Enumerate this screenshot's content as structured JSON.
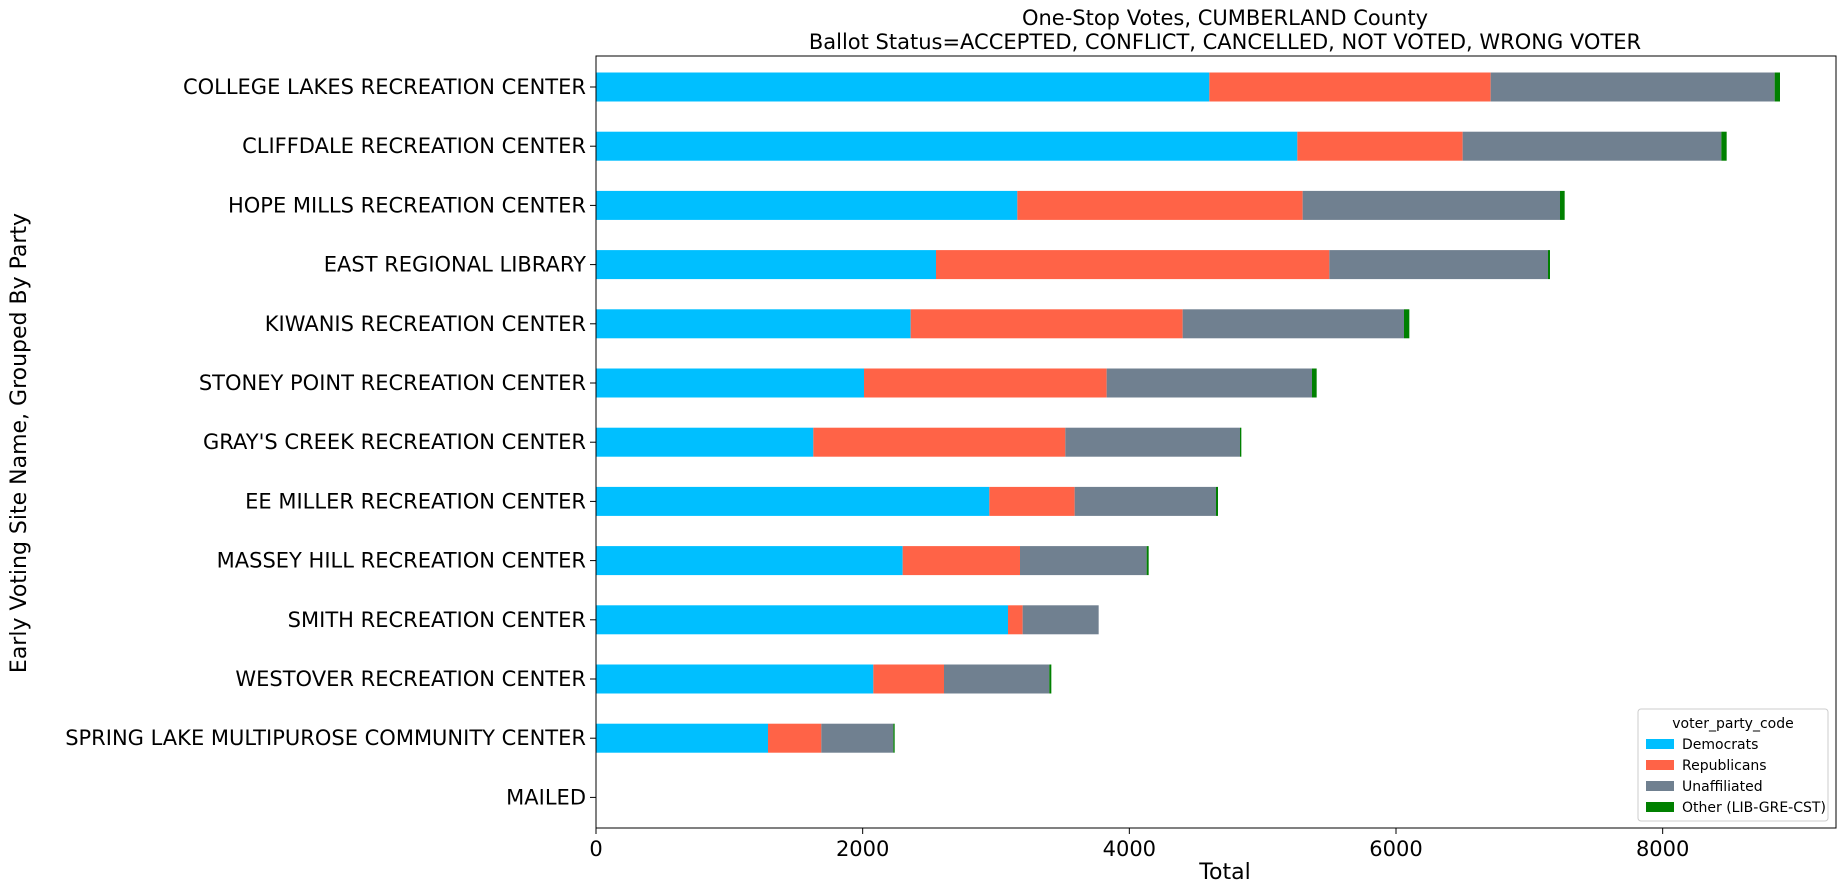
{
  "chart_data": {
    "type": "bar",
    "orientation": "horizontal",
    "stacked": true,
    "title": "One-Stop Votes, CUMBERLAND County",
    "subtitle": "Ballot Status=ACCEPTED, CONFLICT, CANCELLED, NOT VOTED, WRONG VOTER",
    "xlabel": "Total",
    "ylabel": "Early Voting Site Name, Grouped By Party",
    "xlim": [
      0,
      9300
    ],
    "xticks": [
      0,
      2000,
      4000,
      6000,
      8000
    ],
    "grid": false,
    "legend": {
      "title": "voter_party_code",
      "placement": "bottom-right"
    },
    "categories": [
      "COLLEGE LAKES RECREATION CENTER",
      "CLIFFDALE RECREATION CENTER",
      "HOPE MILLS RECREATION CENTER",
      "EAST REGIONAL LIBRARY",
      "KIWANIS RECREATION CENTER",
      "STONEY POINT RECREATION CENTER",
      "GRAY'S CREEK RECREATION CENTER",
      "EE MILLER RECREATION CENTER",
      "MASSEY HILL RECREATION CENTER",
      "SMITH RECREATION CENTER",
      "WESTOVER RECREATION CENTER",
      "SPRING LAKE MULTIPUROSE COMMUNITY CENTER",
      "MAILED"
    ],
    "series": [
      {
        "name": "Democrats",
        "color": "#00bfff",
        "values": [
          4600,
          5260,
          3160,
          2550,
          2360,
          2010,
          1630,
          2950,
          2300,
          3090,
          2080,
          1290,
          0
        ]
      },
      {
        "name": "Republicans",
        "color": "#ff6347",
        "values": [
          2110,
          1240,
          2140,
          2950,
          2040,
          1820,
          1890,
          640,
          880,
          110,
          530,
          400,
          0
        ]
      },
      {
        "name": "Unaffiliated",
        "color": "#708090",
        "values": [
          2130,
          1940,
          1930,
          1640,
          1660,
          1540,
          1310,
          1060,
          950,
          570,
          790,
          540,
          0
        ]
      },
      {
        "name": "Other (LIB-GRE-CST)",
        "color": "#008000",
        "values": [
          40,
          40,
          35,
          15,
          40,
          35,
          10,
          15,
          15,
          0,
          15,
          10,
          0
        ]
      }
    ]
  }
}
